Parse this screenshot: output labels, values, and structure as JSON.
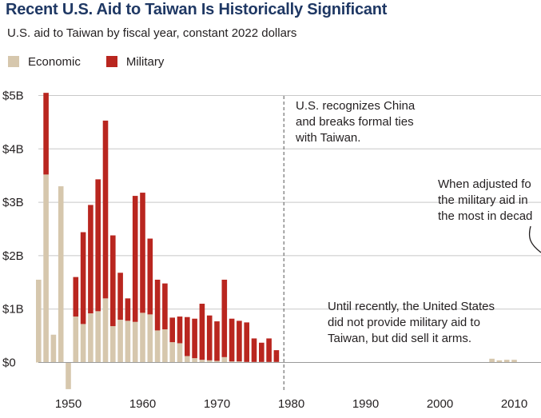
{
  "title": "Recent U.S. Aid to Taiwan Is Historically Significant",
  "subtitle": "U.S. aid to Taiwan by fiscal year, constant 2022 dollars",
  "legend": [
    {
      "label": "Economic",
      "color": "#d6c7ad"
    },
    {
      "label": "Military",
      "color": "#b9261f"
    }
  ],
  "annotations": {
    "ties": [
      "U.S. recognizes China",
      "and breaks formal ties",
      "with Taiwan."
    ],
    "adjusted": [
      "When adjusted fo",
      "the military aid in",
      "the most in decad"
    ],
    "arms": [
      "Until recently, the United States",
      "did not provide military aid to",
      "Taiwan, but did sell it arms."
    ]
  },
  "chart_data": {
    "type": "bar",
    "stacked": true,
    "title": "Recent U.S. Aid to Taiwan Is Historically Significant",
    "subtitle": "U.S. aid to Taiwan by fiscal year, constant 2022 dollars",
    "xlabel": "",
    "ylabel": "",
    "y_ticks": [
      {
        "value": 0,
        "label": "$0"
      },
      {
        "value": 1,
        "label": "$1B"
      },
      {
        "value": 2,
        "label": "$2B"
      },
      {
        "value": 3,
        "label": "$3B"
      },
      {
        "value": 4,
        "label": "$4B"
      },
      {
        "value": 5,
        "label": "$5B"
      }
    ],
    "x_ticks": [
      1950,
      1960,
      1970,
      1980,
      1990,
      2000,
      2010
    ],
    "xlim": [
      1945.5,
      2013
    ],
    "ylim": [
      -0.5,
      5.3
    ],
    "grid": "horizontal",
    "marker_year": 1979,
    "x": [
      1946,
      1947,
      1948,
      1949,
      1950,
      1951,
      1952,
      1953,
      1954,
      1955,
      1956,
      1957,
      1958,
      1959,
      1960,
      1961,
      1962,
      1963,
      1964,
      1965,
      1966,
      1967,
      1968,
      1969,
      1970,
      1971,
      1972,
      1973,
      1974,
      1975,
      1976,
      1977,
      1978,
      2007,
      2008,
      2009,
      2010
    ],
    "series": [
      {
        "name": "Economic",
        "color": "#d6c7ad",
        "values": [
          1.55,
          3.52,
          0.52,
          3.3,
          -0.5,
          0.86,
          0.72,
          0.92,
          0.96,
          1.2,
          0.68,
          0.8,
          0.78,
          0.76,
          0.93,
          0.9,
          0.6,
          0.62,
          0.38,
          0.36,
          0.12,
          0.08,
          0.05,
          0.04,
          0.03,
          0.1,
          0.02,
          0.02,
          0.01,
          0.01,
          0.01,
          0.01,
          0.01,
          0.07,
          0.04,
          0.05,
          0.05
        ]
      },
      {
        "name": "Military",
        "color": "#b9261f",
        "values": [
          0,
          1.53,
          0,
          0,
          0,
          0.74,
          1.72,
          2.03,
          2.47,
          3.33,
          1.7,
          0.88,
          0.42,
          2.36,
          2.25,
          1.42,
          0.95,
          0.86,
          0.46,
          0.5,
          0.73,
          0.74,
          1.05,
          0.84,
          0.74,
          1.45,
          0.8,
          0.76,
          0.74,
          0.44,
          0.36,
          0.44,
          0.14,
          0,
          0,
          0,
          0
        ]
      },
      {
        "name": "",
        "color": "#b9261f",
        "values": [
          0,
          0,
          0,
          0,
          0,
          0,
          0,
          0,
          0,
          0,
          0,
          0,
          0,
          0,
          0,
          0,
          0,
          0,
          0,
          0,
          0,
          0,
          0,
          0,
          0,
          0,
          0,
          0,
          0,
          0,
          0,
          0,
          0.08,
          0,
          0,
          0,
          0
        ]
      }
    ]
  }
}
